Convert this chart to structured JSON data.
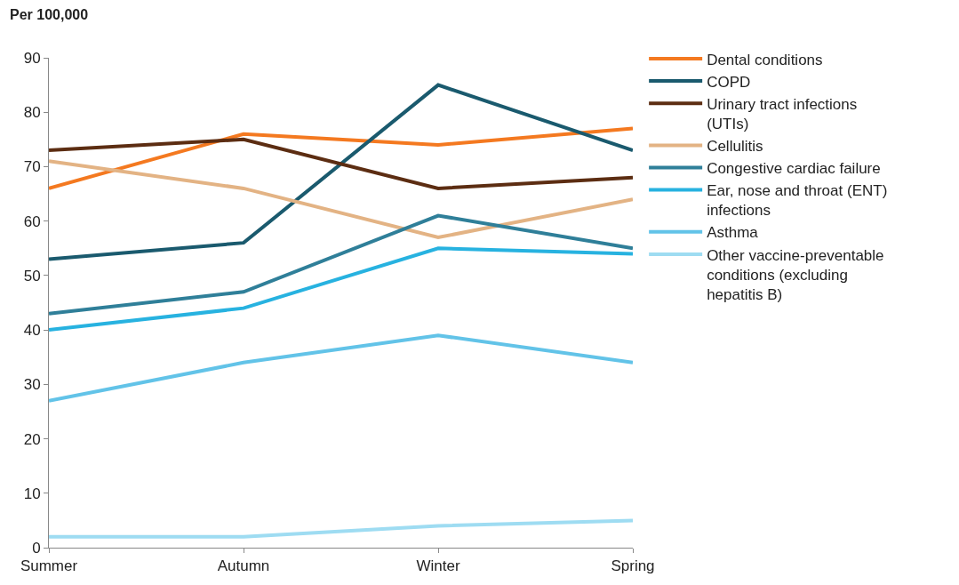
{
  "chart_data": {
    "type": "line",
    "ylabel": "Per 100,000",
    "categories": [
      "Summer",
      "Autumn",
      "Winter",
      "Spring"
    ],
    "ylim": [
      0,
      90
    ],
    "yticks": [
      0,
      10,
      20,
      30,
      40,
      50,
      60,
      70,
      80,
      90
    ],
    "legend": "right",
    "marker": "none",
    "line_style": "solid",
    "series": [
      {
        "name": "Dental conditions",
        "color": "#f47920",
        "values": [
          66,
          76,
          74,
          77
        ]
      },
      {
        "name": "COPD",
        "color": "#1a5a6e",
        "values": [
          53,
          56,
          85,
          73
        ]
      },
      {
        "name": "Urinary tract infections (UTIs)",
        "color": "#5c2d12",
        "values": [
          73,
          75,
          66,
          68
        ]
      },
      {
        "name": "Cellulitis",
        "color": "#e3b384",
        "values": [
          71,
          66,
          57,
          64
        ]
      },
      {
        "name": "Congestive cardiac failure",
        "color": "#2f7f99",
        "values": [
          43,
          47,
          61,
          55
        ]
      },
      {
        "name": "Ear, nose and throat (ENT) infections",
        "color": "#27b2e0",
        "values": [
          40,
          44,
          55,
          54
        ]
      },
      {
        "name": "Asthma",
        "color": "#62c3e8",
        "values": [
          27,
          34,
          39,
          34
        ]
      },
      {
        "name": "Other vaccine-preventable conditions (excluding hepatitis B)",
        "color": "#9edcf2",
        "values": [
          2,
          2,
          4,
          5
        ]
      }
    ]
  }
}
